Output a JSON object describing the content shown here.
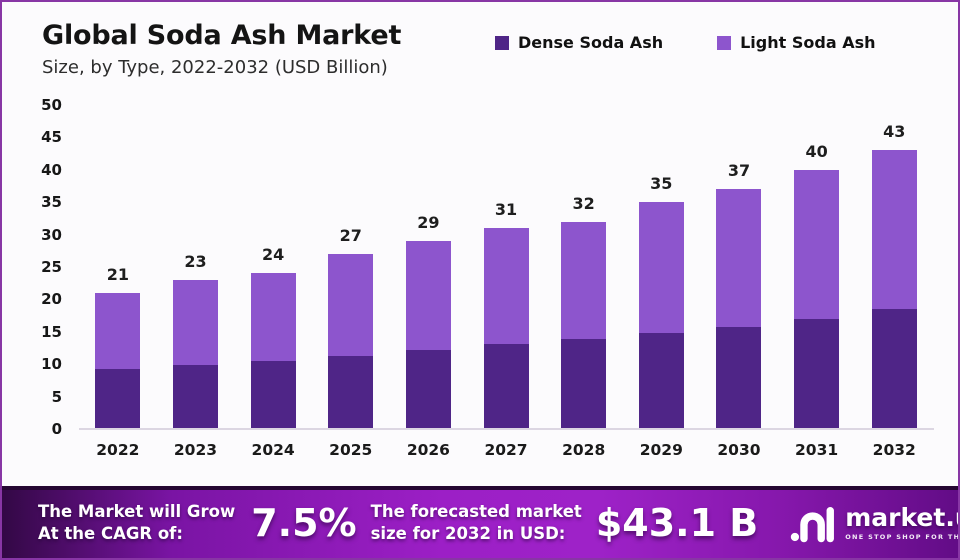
{
  "header": {
    "title": "Global Soda Ash Market",
    "subtitle": "Size, by Type, 2022-2032 (USD Billion)"
  },
  "legend": [
    {
      "label": "Dense Soda Ash",
      "color": "#4f2587"
    },
    {
      "label": "Light Soda Ash",
      "color": "#8d55cd"
    }
  ],
  "chart_data": {
    "type": "bar",
    "stacked": true,
    "title": "Global Soda Ash Market Size, by Type, 2022-2032 (USD Billion)",
    "categories": [
      "2022",
      "2023",
      "2024",
      "2025",
      "2026",
      "2027",
      "2028",
      "2029",
      "2030",
      "2031",
      "2032"
    ],
    "series": [
      {
        "name": "Dense Soda Ash",
        "color": "#4f2587",
        "values": [
          9.2,
          9.8,
          10.5,
          11.3,
          12.2,
          13.1,
          13.9,
          14.8,
          15.8,
          17.0,
          18.5
        ]
      },
      {
        "name": "Light Soda Ash",
        "color": "#8d55cd",
        "values": [
          11.8,
          13.2,
          13.5,
          15.7,
          16.8,
          17.9,
          18.1,
          20.2,
          21.2,
          23.0,
          24.5
        ]
      }
    ],
    "totals": [
      21,
      23,
      24,
      27,
      29,
      31,
      32,
      35,
      37,
      40,
      43
    ],
    "ylabel": "",
    "xlabel": "",
    "ylim": [
      0,
      50
    ],
    "ytick_step": 5,
    "grid": false,
    "legend_position": "top-right"
  },
  "banner": {
    "cagr_label_line1": "The Market will Grow",
    "cagr_label_line2": "At the CAGR of:",
    "cagr_value": "7.5%",
    "forecast_label_line1": "The forecasted market",
    "forecast_label_line2": "size for 2032 in USD:",
    "forecast_value": "$43.1 B",
    "brand": "market.us",
    "brand_tagline": "ONE STOP SHOP FOR THE REPORTS"
  }
}
